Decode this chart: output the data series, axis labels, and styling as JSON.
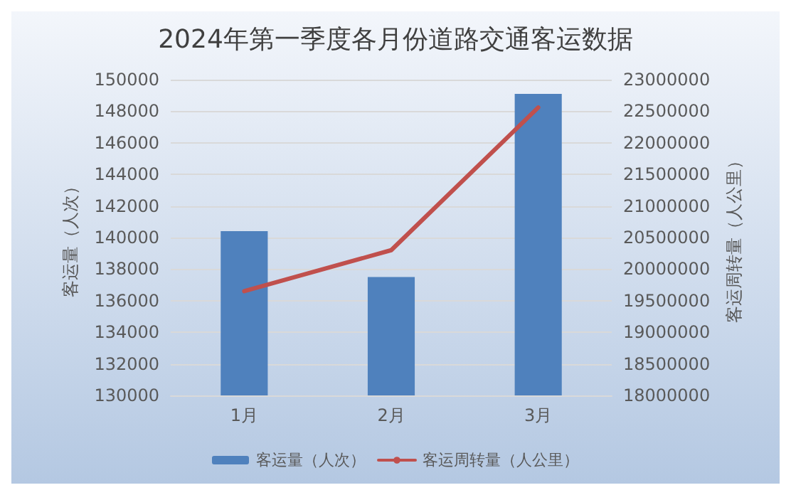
{
  "chart_data": {
    "type": "bar",
    "title": "2024年第一季度各月份道路交通客运数据",
    "categories": [
      "1月",
      "2月",
      "3月"
    ],
    "series": [
      {
        "name": "客运量（人次）",
        "color": "#4f81bd",
        "values": [
          140400,
          137500,
          149100
        ]
      },
      {
        "name": "客运周转量（人公里）",
        "type": "line",
        "axis": "y2",
        "color": "#c0504d",
        "values": [
          19650000,
          20300000,
          22560000
        ]
      }
    ],
    "ylabel": "客运量（人次）",
    "y2label": "客运周转量（人公里）",
    "ylim": [
      130000,
      150000
    ],
    "yticks": [
      130000,
      132000,
      134000,
      136000,
      138000,
      140000,
      142000,
      144000,
      146000,
      148000,
      150000
    ],
    "y2lim": [
      18000000,
      23000000
    ],
    "y2ticks": [
      18000000,
      18500000,
      19000000,
      19500000,
      20000000,
      20500000,
      21000000,
      21500000,
      22000000,
      22500000,
      23000000
    ],
    "grid": "y",
    "legend": "bottom",
    "marker": "none"
  }
}
